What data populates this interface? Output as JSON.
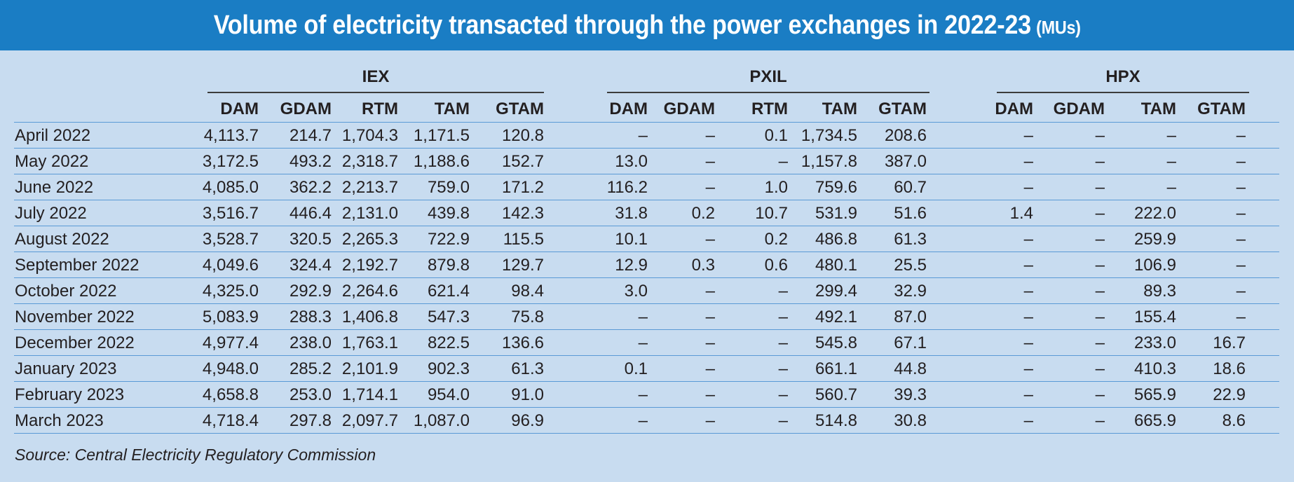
{
  "title": {
    "main": "Volume of electricity transacted through the power exchanges in 2022-23",
    "unit": "(MUs)"
  },
  "groups": [
    {
      "name": "IEX",
      "columns": [
        "DAM",
        "GDAM",
        "RTM",
        "TAM",
        "GTAM"
      ]
    },
    {
      "name": "PXIL",
      "columns": [
        "DAM",
        "GDAM",
        "RTM",
        "TAM",
        "GTAM"
      ]
    },
    {
      "name": "HPX",
      "columns": [
        "DAM",
        "GDAM",
        "TAM",
        "GTAM"
      ]
    }
  ],
  "rows": [
    {
      "month": "April 2022",
      "iex": [
        "4,113.7",
        "214.7",
        "1,704.3",
        "1,171.5",
        "120.8"
      ],
      "pxil": [
        "–",
        "–",
        "0.1",
        "1,734.5",
        "208.6"
      ],
      "hpx": [
        "–",
        "–",
        "–",
        "–"
      ]
    },
    {
      "month": "May 2022",
      "iex": [
        "3,172.5",
        "493.2",
        "2,318.7",
        "1,188.6",
        "152.7"
      ],
      "pxil": [
        "13.0",
        "–",
        "–",
        "1,157.8",
        "387.0"
      ],
      "hpx": [
        "–",
        "–",
        "–",
        "–"
      ]
    },
    {
      "month": "June 2022",
      "iex": [
        "4,085.0",
        "362.2",
        "2,213.7",
        "759.0",
        "171.2"
      ],
      "pxil": [
        "116.2",
        "–",
        "1.0",
        "759.6",
        "60.7"
      ],
      "hpx": [
        "–",
        "–",
        "–",
        "–"
      ]
    },
    {
      "month": "July 2022",
      "iex": [
        "3,516.7",
        "446.4",
        "2,131.0",
        "439.8",
        "142.3"
      ],
      "pxil": [
        "31.8",
        "0.2",
        "10.7",
        "531.9",
        "51.6"
      ],
      "hpx": [
        "1.4",
        "–",
        "222.0",
        "–"
      ]
    },
    {
      "month": "August 2022",
      "iex": [
        "3,528.7",
        "320.5",
        "2,265.3",
        "722.9",
        "115.5"
      ],
      "pxil": [
        "10.1",
        "–",
        "0.2",
        "486.8",
        "61.3"
      ],
      "hpx": [
        "–",
        "–",
        "259.9",
        "–"
      ]
    },
    {
      "month": "September 2022",
      "iex": [
        "4,049.6",
        "324.4",
        "2,192.7",
        "879.8",
        "129.7"
      ],
      "pxil": [
        "12.9",
        "0.3",
        "0.6",
        "480.1",
        "25.5"
      ],
      "hpx": [
        "–",
        "–",
        "106.9",
        "–"
      ]
    },
    {
      "month": "October 2022",
      "iex": [
        "4,325.0",
        "292.9",
        "2,264.6",
        "621.4",
        "98.4"
      ],
      "pxil": [
        "3.0",
        "–",
        "–",
        "299.4",
        "32.9"
      ],
      "hpx": [
        "–",
        "–",
        "89.3",
        "–"
      ]
    },
    {
      "month": "November 2022",
      "iex": [
        "5,083.9",
        "288.3",
        "1,406.8",
        "547.3",
        "75.8"
      ],
      "pxil": [
        "–",
        "–",
        "–",
        "492.1",
        "87.0"
      ],
      "hpx": [
        "–",
        "–",
        "155.4",
        "–"
      ]
    },
    {
      "month": "December 2022",
      "iex": [
        "4,977.4",
        "238.0",
        "1,763.1",
        "822.5",
        "136.6"
      ],
      "pxil": [
        "–",
        "–",
        "–",
        "545.8",
        "67.1"
      ],
      "hpx": [
        "–",
        "–",
        "233.0",
        "16.7"
      ]
    },
    {
      "month": "January 2023",
      "iex": [
        "4,948.0",
        "285.2",
        "2,101.9",
        "902.3",
        "61.3"
      ],
      "pxil": [
        "0.1",
        "–",
        "–",
        "661.1",
        "44.8"
      ],
      "hpx": [
        "–",
        "–",
        "410.3",
        "18.6"
      ]
    },
    {
      "month": "February 2023",
      "iex": [
        "4,658.8",
        "253.0",
        "1,714.1",
        "954.0",
        "91.0"
      ],
      "pxil": [
        "–",
        "–",
        "–",
        "560.7",
        "39.3"
      ],
      "hpx": [
        "–",
        "–",
        "565.9",
        "22.9"
      ]
    },
    {
      "month": "March 2023",
      "iex": [
        "4,718.4",
        "297.8",
        "2,097.7",
        "1,087.0",
        "96.9"
      ],
      "pxil": [
        "–",
        "–",
        "–",
        "514.8",
        "30.8"
      ],
      "hpx": [
        "–",
        "–",
        "665.9",
        "8.6"
      ]
    }
  ],
  "source": "Source: Central Electricity Regulatory Commission",
  "colors": {
    "title_bar": "#1a7dc4",
    "background": "#c8dcf0",
    "row_rule": "#5a9ad6"
  }
}
